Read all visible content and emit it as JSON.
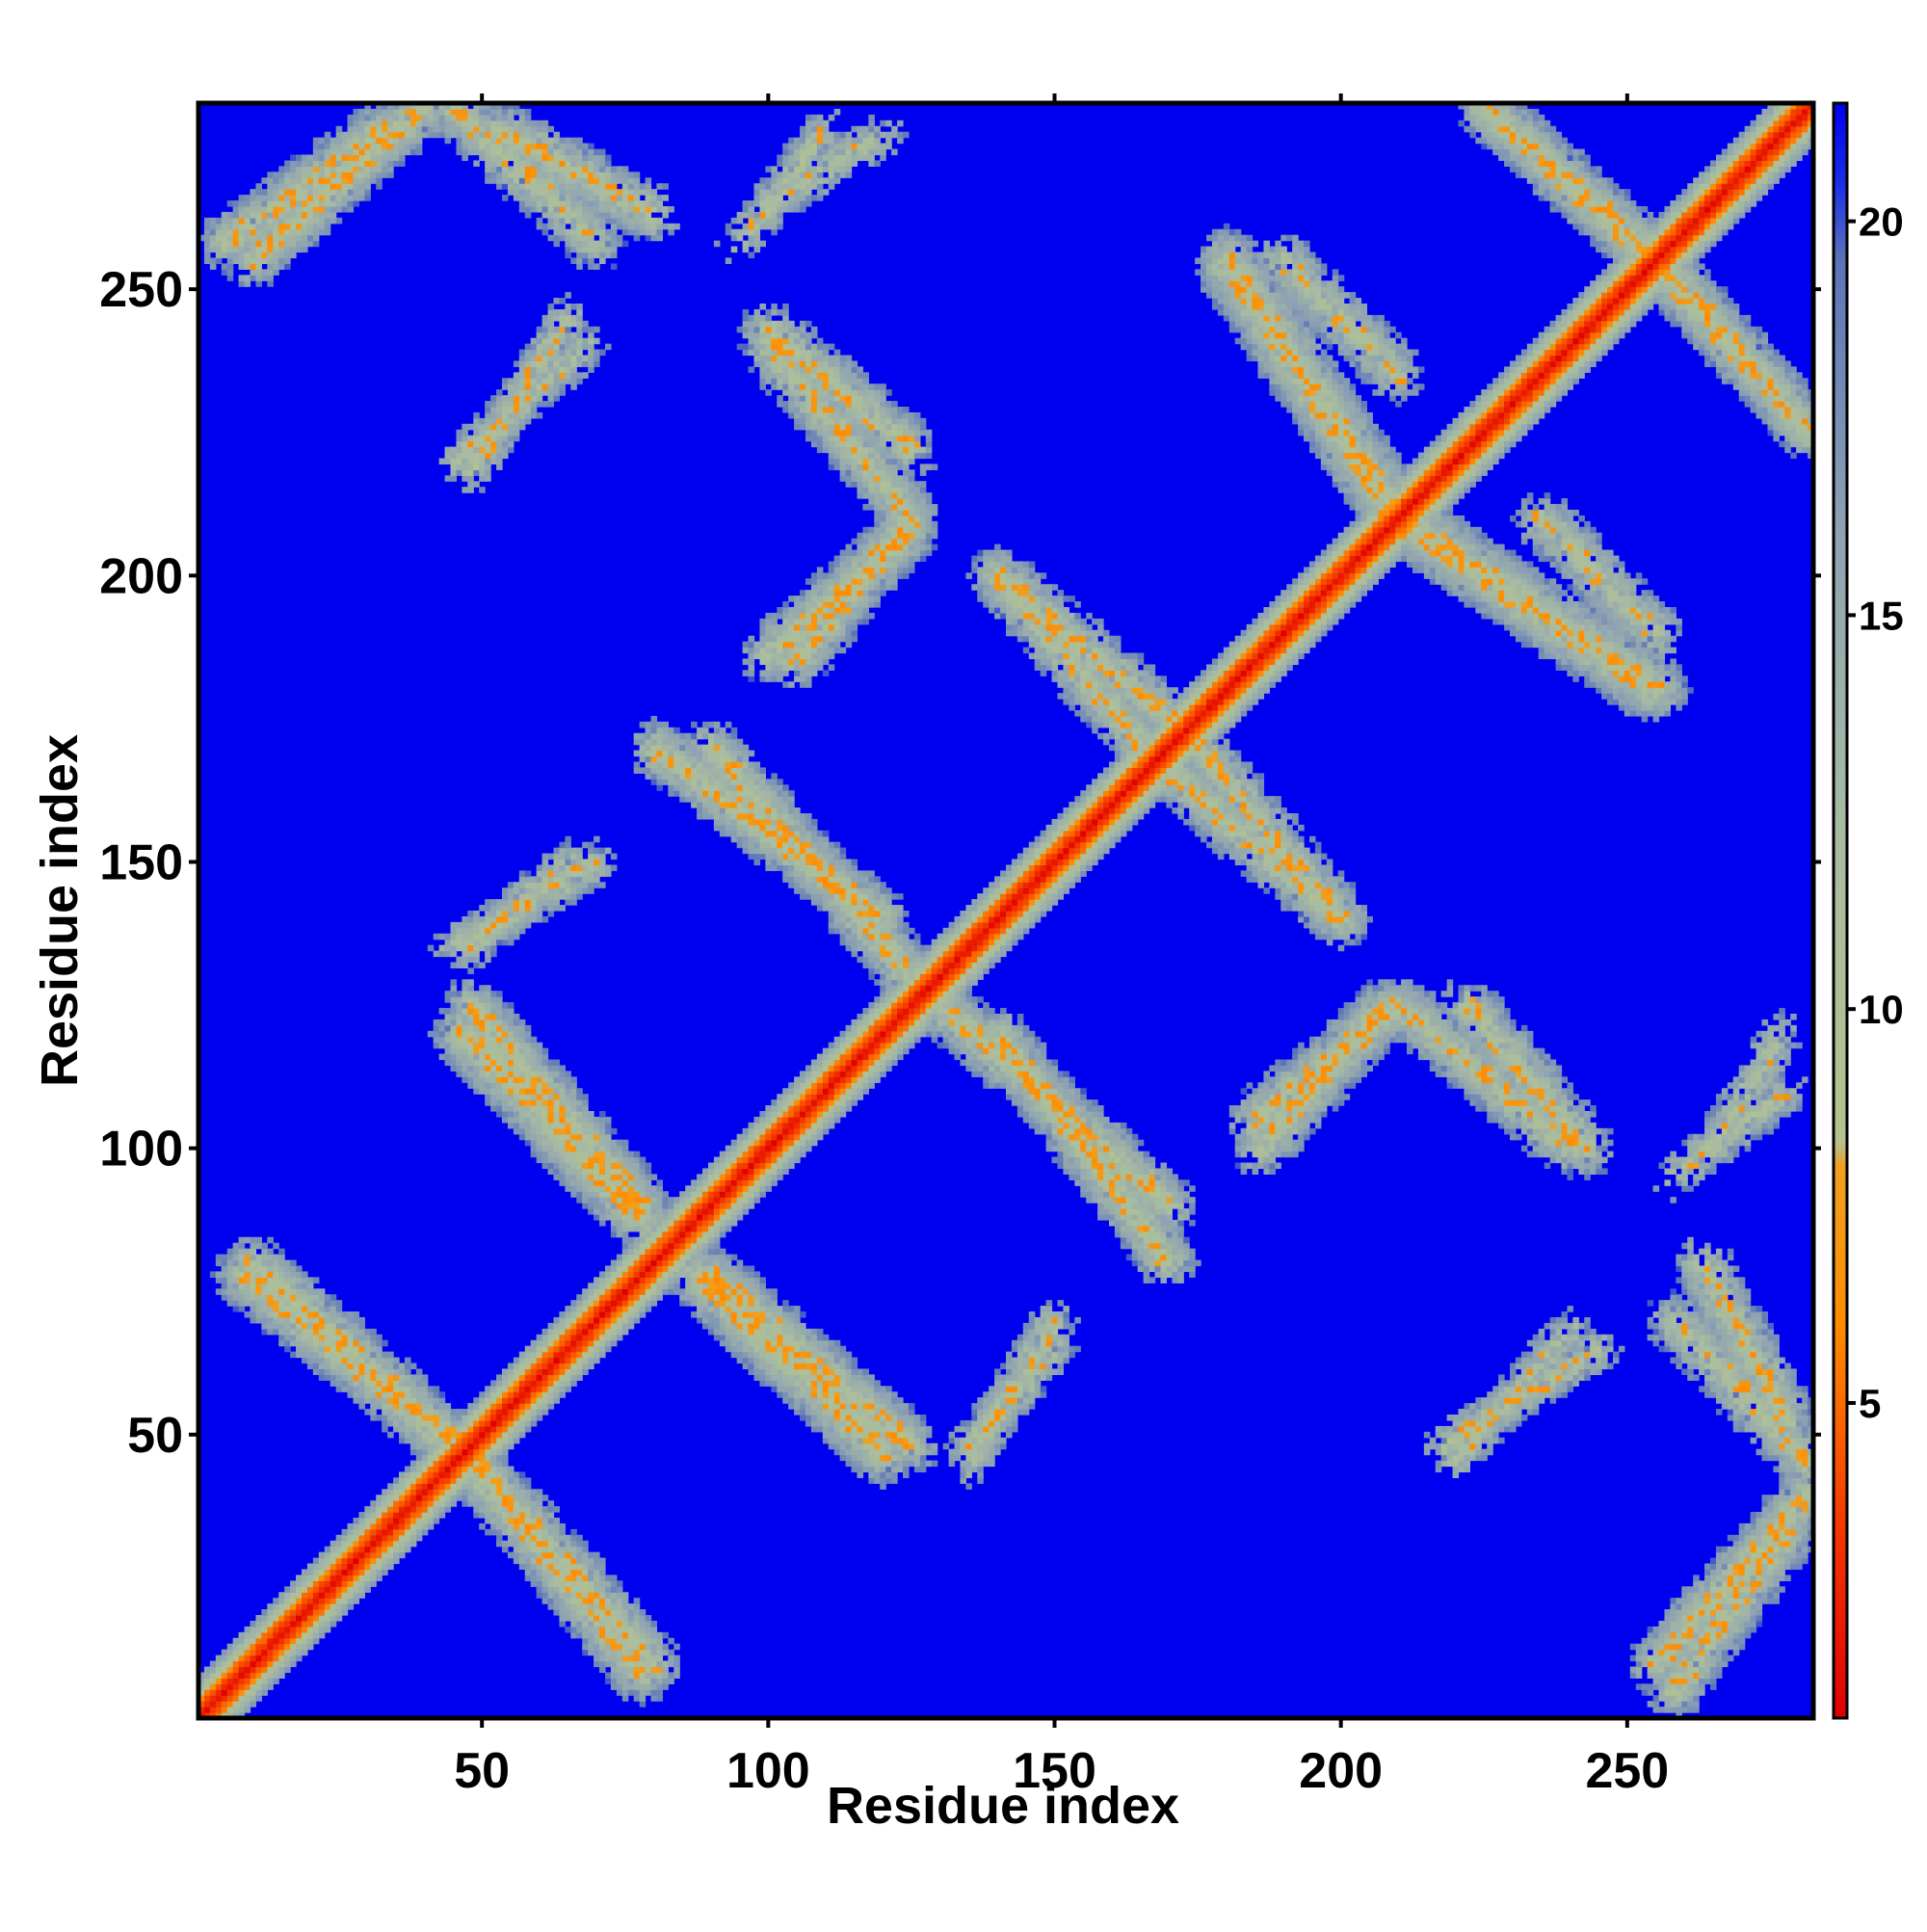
{
  "chart_data": {
    "type": "heatmap",
    "title": "",
    "xlabel": "Residue index",
    "ylabel": "Residue index",
    "n_residues": 282,
    "xlim": [
      0.5,
      282.5
    ],
    "ylim": [
      0.5,
      282.5
    ],
    "x_ticks": [
      50,
      100,
      150,
      200,
      250
    ],
    "y_ticks": [
      50,
      100,
      150,
      200,
      250
    ],
    "x_tick_labels": [
      "50",
      "100",
      "150",
      "200",
      "250"
    ],
    "y_tick_labels": [
      "50",
      "100",
      "150",
      "200",
      "250"
    ],
    "colorbar": {
      "ticks": [
        5,
        10,
        15,
        20
      ],
      "tick_labels": [
        "5",
        "10",
        "15",
        "20"
      ],
      "range": [
        1,
        21.5
      ],
      "stops": [
        {
          "value": 1,
          "color": "#e00000"
        },
        {
          "value": 3.5,
          "color": "#f53a00"
        },
        {
          "value": 6,
          "color": "#ff8c00"
        },
        {
          "value": 8,
          "color": "#f0a020"
        },
        {
          "value": 8.3,
          "color": "#b4c28c"
        },
        {
          "value": 12,
          "color": "#a9bca0"
        },
        {
          "value": 16,
          "color": "#8fa3b2"
        },
        {
          "value": 19.5,
          "color": "#5b74b8"
        },
        {
          "value": 20.5,
          "color": "#1a2ee8"
        },
        {
          "value": 21.5,
          "color": "#0000f0"
        }
      ]
    },
    "background_value": 21.5,
    "diagonal_band": {
      "core_max": 4.0,
      "halfwidth": 7
    },
    "contact_bands": [
      {
        "x": [
          5,
          33
        ],
        "y": [
          258,
          278
        ],
        "orient": "anti",
        "width": 5,
        "density": 0.6
      },
      {
        "x": [
          53,
          80
        ],
        "y": [
          278,
          263
        ],
        "orient": "parallel",
        "width": 5,
        "density": 0.55
      },
      {
        "x": [
          100,
          120
        ],
        "y": [
          265,
          277
        ],
        "orient": "anti",
        "width": 4,
        "density": 0.35
      },
      {
        "x": [
          46,
          68
        ],
        "y": [
          220,
          240
        ],
        "orient": "anti",
        "width": 4,
        "density": 0.5
      },
      {
        "x": [
          100,
          125
        ],
        "y": [
          243,
          222
        ],
        "orient": "parallel",
        "width": 5,
        "density": 0.6
      },
      {
        "x": [
          100,
          125
        ],
        "y": [
          186,
          208
        ],
        "orient": "anti",
        "width": 5,
        "density": 0.65
      },
      {
        "x": [
          80,
          120
        ],
        "y": [
          170,
          140
        ],
        "orient": "parallel",
        "width": 5,
        "density": 0.75
      },
      {
        "x": [
          45,
          70
        ],
        "y": [
          135,
          150
        ],
        "orient": "anti",
        "width": 4,
        "density": 0.55
      },
      {
        "x": [
          47,
          78
        ],
        "y": [
          120,
          88
        ],
        "orient": "parallel",
        "width": 6,
        "density": 0.8
      },
      {
        "x": [
          8,
          45
        ],
        "y": [
          78,
          48
        ],
        "orient": "parallel",
        "width": 5,
        "density": 0.75
      },
      {
        "x": [
          47,
          80
        ],
        "y": [
          47,
          10
        ],
        "orient": "parallel",
        "width": 5,
        "density": 0.75
      },
      {
        "x": [
          90,
          125
        ],
        "y": [
          78,
          48
        ],
        "orient": "parallel",
        "width": 5,
        "density": 0.75
      },
      {
        "x": [
          135,
          150
        ],
        "y": [
          48,
          65
        ],
        "orient": "anti",
        "width": 4,
        "density": 0.5
      },
      {
        "x": [
          130,
          170
        ],
        "y": [
          125,
          90
        ],
        "orient": "parallel",
        "width": 5,
        "density": 0.7
      },
      {
        "x": [
          140,
          170
        ],
        "y": [
          200,
          175
        ],
        "orient": "parallel",
        "width": 5,
        "density": 0.55
      },
      {
        "x": [
          165,
          200
        ],
        "y": [
          170,
          140
        ],
        "orient": "parallel",
        "width": 5,
        "density": 0.6
      },
      {
        "x": [
          185,
          210
        ],
        "y": [
          105,
          125
        ],
        "orient": "anti",
        "width": 5,
        "density": 0.65
      },
      {
        "x": [
          210,
          240
        ],
        "y": [
          125,
          100
        ],
        "orient": "parallel",
        "width": 5,
        "density": 0.6
      },
      {
        "x": [
          190,
          210
        ],
        "y": [
          255,
          235
        ],
        "orient": "parallel",
        "width": 5,
        "density": 0.55
      },
      {
        "x": [
          210,
          255
        ],
        "y": [
          210,
          180
        ],
        "orient": "parallel",
        "width": 6,
        "density": 0.75
      },
      {
        "x": [
          225,
          260
        ],
        "y": [
          282,
          250
        ],
        "orient": "parallel",
        "width": 5,
        "density": 0.65
      },
      {
        "x": [
          260,
          282
        ],
        "y": [
          250,
          225
        ],
        "orient": "parallel",
        "width": 5,
        "density": 0.6
      },
      {
        "x": [
          255,
          282
        ],
        "y": [
          10,
          40
        ],
        "orient": "anti",
        "width": 5,
        "density": 0.75
      },
      {
        "x": [
          258,
          282
        ],
        "y": [
          70,
          45
        ],
        "orient": "parallel",
        "width": 5,
        "density": 0.6
      },
      {
        "x": [
          218,
          245
        ],
        "y": [
          48,
          65
        ],
        "orient": "anti",
        "width": 4,
        "density": 0.45
      },
      {
        "x": [
          258,
          278
        ],
        "y": [
          95,
          110
        ],
        "orient": "anti",
        "width": 4,
        "density": 0.35
      }
    ],
    "grid": false,
    "legend": "colorbar-right"
  }
}
